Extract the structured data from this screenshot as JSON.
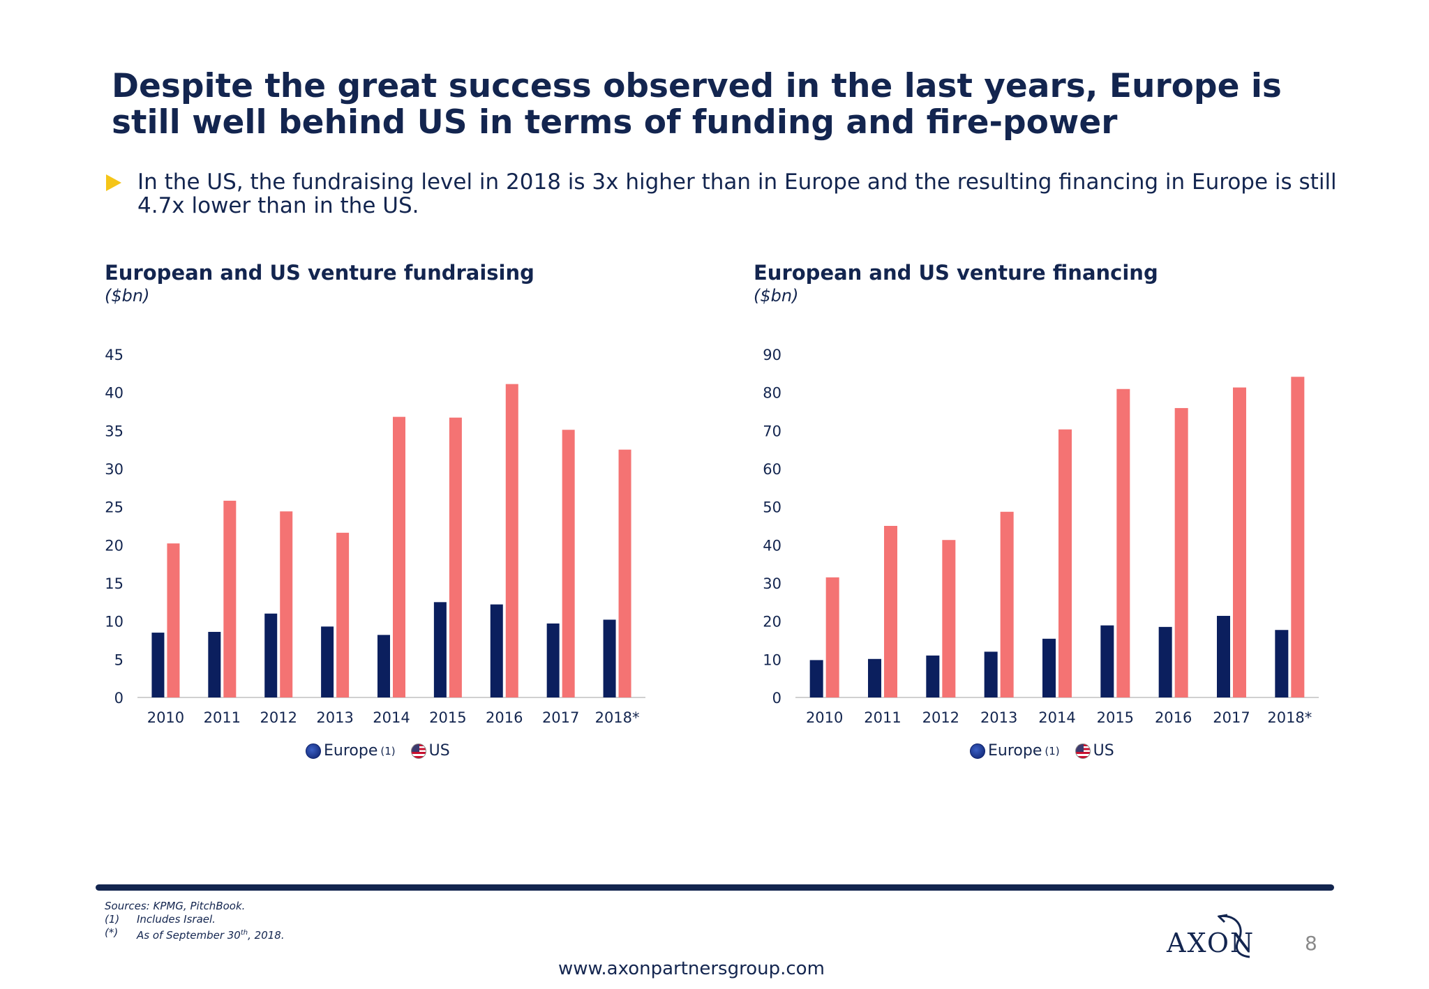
{
  "title": "Despite the great success observed in the last years, Europe is still well behind US in terms of funding and fire-power",
  "bullet": {
    "icon": "triangle-bullet-icon",
    "text": "In the US, the fundraising level in 2018 is 3x higher than in Europe and the resulting financing in Europe is still 4.7x lower than in the US."
  },
  "colors": {
    "europe": "#0b1f5e",
    "us": "#f47373",
    "title": "#13254f",
    "bullet": "#f5c518"
  },
  "legend": {
    "europe_label": "Europe",
    "europe_note": "(1)",
    "us_label": "US"
  },
  "chart_data": [
    {
      "type": "bar",
      "title": "European and US venture fundraising",
      "unit": "($bn)",
      "categories": [
        "2010",
        "2011",
        "2012",
        "2013",
        "2014",
        "2015",
        "2016",
        "2017",
        "2018*"
      ],
      "ylim": [
        0,
        45
      ],
      "yticks": [
        0,
        5,
        10,
        15,
        20,
        25,
        30,
        35,
        40,
        45
      ],
      "grid": false,
      "legend_position": "bottom",
      "series": [
        {
          "name": "Europe(1)",
          "values": [
            8.5,
            8.6,
            11.0,
            9.3,
            8.2,
            12.5,
            12.2,
            9.7,
            10.2
          ]
        },
        {
          "name": "US",
          "values": [
            20.2,
            25.8,
            24.4,
            21.6,
            36.8,
            36.7,
            41.1,
            35.1,
            32.5
          ]
        }
      ]
    },
    {
      "type": "bar",
      "title": "European and US venture financing",
      "unit": "($bn)",
      "categories": [
        "2010",
        "2011",
        "2012",
        "2013",
        "2014",
        "2015",
        "2016",
        "2017",
        "2018*"
      ],
      "ylim": [
        0,
        90
      ],
      "yticks": [
        0,
        10,
        20,
        30,
        40,
        50,
        60,
        70,
        80,
        90
      ],
      "grid": false,
      "legend_position": "bottom",
      "series": [
        {
          "name": "Europe(1)",
          "values": [
            9.8,
            10.1,
            11.0,
            12.0,
            15.4,
            18.9,
            18.5,
            21.4,
            17.7
          ]
        },
        {
          "name": "US",
          "values": [
            31.5,
            45.0,
            41.3,
            48.7,
            70.3,
            80.9,
            75.9,
            81.3,
            84.1
          ]
        }
      ]
    }
  ],
  "footer": {
    "sources": "Sources: KPMG, PitchBook.",
    "notes": [
      {
        "mark": "(1)",
        "text": "Includes Israel."
      },
      {
        "mark": "(*)",
        "text": "As of September 30",
        "sup": "th",
        "text_after": ", 2018."
      }
    ],
    "logo": "AXON",
    "page_number": "8",
    "website": "www.axonpartnersgroup.com"
  }
}
